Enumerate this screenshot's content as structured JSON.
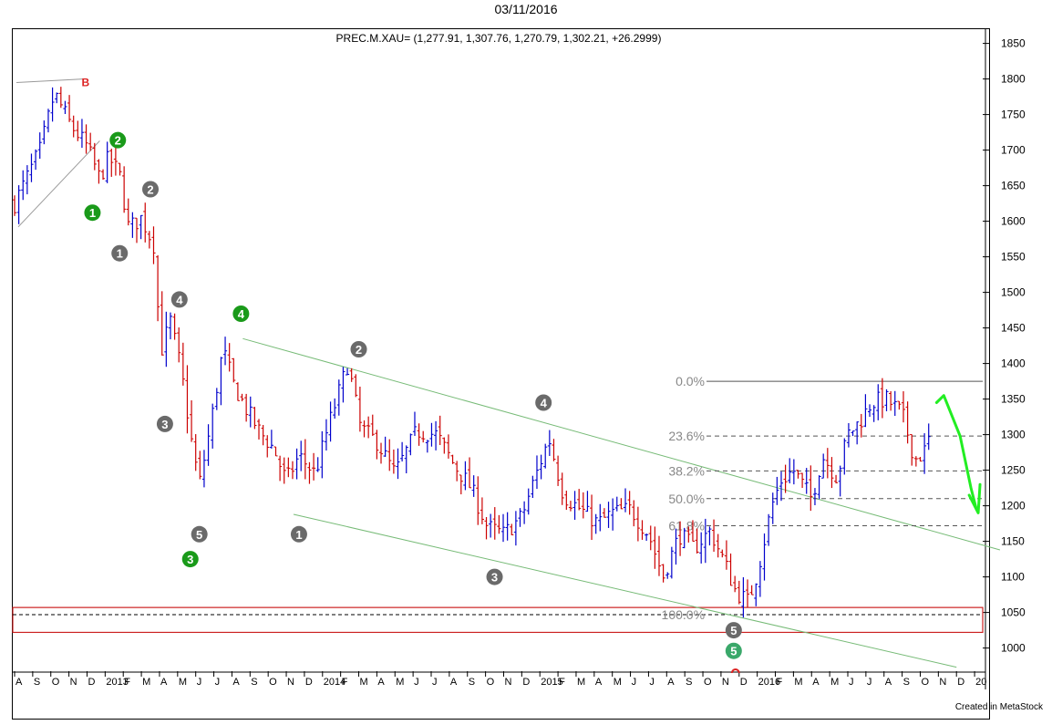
{
  "page": {
    "date_title": "03/11/2016",
    "credit": "Created in MetaStock"
  },
  "chart_data": {
    "type": "bar",
    "style": "ohlc-weekly",
    "title": "PREC.M.XAU= (1,277.91, 1,307.76, 1,270.79, 1,302.21, +26.2999)",
    "ylim": [
      970,
      1870
    ],
    "y_ticks": [
      1000,
      1050,
      1100,
      1150,
      1200,
      1250,
      1300,
      1350,
      1400,
      1450,
      1500,
      1550,
      1600,
      1650,
      1700,
      1750,
      1800,
      1850
    ],
    "x_ticks": [
      "A",
      "S",
      "O",
      "N",
      "D",
      "2013",
      "F",
      "M",
      "A",
      "M",
      "J",
      "J",
      "A",
      "S",
      "O",
      "N",
      "D",
      "2014",
      "F",
      "M",
      "A",
      "M",
      "J",
      "J",
      "A",
      "S",
      "O",
      "N",
      "D",
      "2015",
      "F",
      "M",
      "A",
      "M",
      "J",
      "J",
      "A",
      "S",
      "O",
      "N",
      "D",
      "2016",
      "F",
      "M",
      "A",
      "M",
      "J",
      "J",
      "A",
      "S",
      "O",
      "N",
      "D",
      "20"
    ],
    "x_start_index": 0,
    "up_color": "#0000cc",
    "down_color": "#cc0000",
    "guide_color": "#77bb77",
    "fib_color": "#888888",
    "anchors": [
      [
        0,
        1625
      ],
      [
        1.4,
        1700
      ],
      [
        2.2,
        1780
      ],
      [
        3.1,
        1735
      ],
      [
        4.0,
        1705
      ],
      [
        4.7,
        1660
      ],
      [
        5.2,
        1690
      ],
      [
        5.8,
        1665
      ],
      [
        6.3,
        1590
      ],
      [
        7.0,
        1605
      ],
      [
        7.8,
        1560
      ],
      [
        8.0,
        1410
      ],
      [
        8.6,
        1460
      ],
      [
        9.2,
        1390
      ],
      [
        9.8,
        1285
      ],
      [
        10.2,
        1230
      ],
      [
        10.8,
        1310
      ],
      [
        11.5,
        1420
      ],
      [
        12.1,
        1370
      ],
      [
        12.7,
        1340
      ],
      [
        13.5,
        1305
      ],
      [
        14.3,
        1280
      ],
      [
        15.0,
        1235
      ],
      [
        15.7,
        1270
      ],
      [
        16.6,
        1245
      ],
      [
        17.3,
        1310
      ],
      [
        18.4,
        1400
      ],
      [
        19.1,
        1310
      ],
      [
        20.0,
        1290
      ],
      [
        21.0,
        1245
      ],
      [
        22.2,
        1305
      ],
      [
        23.3,
        1300
      ],
      [
        24.2,
        1260
      ],
      [
        25.2,
        1225
      ],
      [
        26.1,
        1170
      ],
      [
        27.0,
        1160
      ],
      [
        28.0,
        1185
      ],
      [
        28.6,
        1230
      ],
      [
        29.5,
        1295
      ],
      [
        30.3,
        1215
      ],
      [
        31.0,
        1200
      ],
      [
        32.2,
        1175
      ],
      [
        33.0,
        1190
      ],
      [
        34.0,
        1195
      ],
      [
        35.0,
        1160
      ],
      [
        35.8,
        1100
      ],
      [
        36.7,
        1160
      ],
      [
        37.5,
        1140
      ],
      [
        38.4,
        1165
      ],
      [
        39.2,
        1120
      ],
      [
        39.8,
        1080
      ],
      [
        40.5,
        1065
      ],
      [
        41.0,
        1105
      ],
      [
        41.8,
        1200
      ],
      [
        42.3,
        1235
      ],
      [
        43.0,
        1250
      ],
      [
        44.0,
        1210
      ],
      [
        44.6,
        1270
      ],
      [
        45.4,
        1240
      ],
      [
        46.0,
        1300
      ],
      [
        46.7,
        1320
      ],
      [
        47.3,
        1345
      ],
      [
        48.1,
        1350
      ],
      [
        49.0,
        1330
      ],
      [
        49.7,
        1265
      ],
      [
        50.2,
        1275
      ],
      [
        50.6,
        1302
      ]
    ],
    "waves": [
      {
        "label": "B",
        "x": 3.7,
        "y": 1795,
        "style": "red-text"
      },
      {
        "label": "1",
        "x": 4.3,
        "y": 1612,
        "style": "green"
      },
      {
        "label": "2",
        "x": 5.7,
        "y": 1714,
        "style": "green"
      },
      {
        "label": "2",
        "x": 7.5,
        "y": 1645,
        "style": "grey"
      },
      {
        "label": "1",
        "x": 5.8,
        "y": 1555,
        "style": "grey"
      },
      {
        "label": "4",
        "x": 9.1,
        "y": 1490,
        "style": "grey"
      },
      {
        "label": "4",
        "x": 12.5,
        "y": 1470,
        "style": "green"
      },
      {
        "label": "3",
        "x": 8.3,
        "y": 1315,
        "style": "grey"
      },
      {
        "label": "5",
        "x": 10.2,
        "y": 1160,
        "style": "grey"
      },
      {
        "label": "3",
        "x": 9.7,
        "y": 1125,
        "style": "green"
      },
      {
        "label": "2",
        "x": 19.0,
        "y": 1420,
        "style": "grey"
      },
      {
        "label": "1",
        "x": 15.7,
        "y": 1160,
        "style": "grey"
      },
      {
        "label": "3",
        "x": 26.5,
        "y": 1100,
        "style": "grey"
      },
      {
        "label": "4",
        "x": 29.2,
        "y": 1345,
        "style": "grey"
      },
      {
        "label": "5",
        "x": 39.7,
        "y": 1025,
        "style": "grey"
      },
      {
        "label": "5",
        "x": 39.7,
        "y": 996,
        "style": "teal"
      }
    ],
    "fib_levels": [
      {
        "label": "0.0%",
        "value": 1375
      },
      {
        "label": "23.6%",
        "value": 1298
      },
      {
        "label": "38.2%",
        "value": 1249
      },
      {
        "label": "50.0%",
        "value": 1210
      },
      {
        "label": "61.8%",
        "value": 1172
      },
      {
        "label": "100.0%",
        "value": 1047
      }
    ],
    "fib_start_x": 38.2,
    "channel_upper": [
      [
        12.6,
        1435
      ],
      [
        54.4,
        1138
      ]
    ],
    "channel_lower": [
      [
        15.4,
        1188
      ],
      [
        52.0,
        973
      ]
    ],
    "wedge_lines": [
      [
        [
          0.1,
          1795
        ],
        [
          3.8,
          1800
        ]
      ],
      [
        [
          0.2,
          1592
        ],
        [
          4.7,
          1713
        ]
      ]
    ],
    "support_zone": [
      1022,
      1057
    ],
    "support_dashed": 1047,
    "projection": [
      [
        50.9,
        1345
      ],
      [
        51.3,
        1355
      ],
      [
        52.2,
        1298
      ],
      [
        52.8,
        1225
      ],
      [
        53.1,
        1195
      ]
    ],
    "projection_arrow": [
      [
        52.7,
        1215
      ],
      [
        53.2,
        1190
      ],
      [
        53.3,
        1230
      ]
    ]
  }
}
